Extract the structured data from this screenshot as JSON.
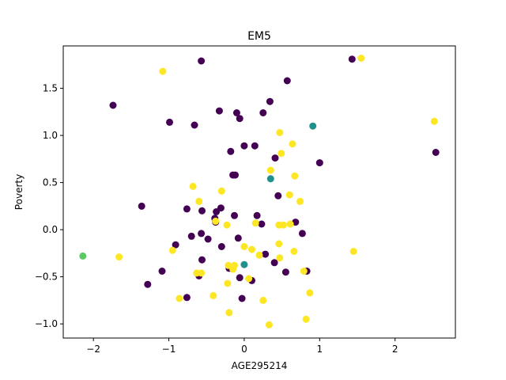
{
  "chart_data": {
    "type": "scatter",
    "title": "EM5",
    "xlabel": "AGE295214",
    "ylabel": "Poverty",
    "xlim": [
      -2.4,
      2.8
    ],
    "ylim": [
      -1.15,
      1.95
    ],
    "xticks": [
      -2,
      -1,
      0,
      1,
      2
    ],
    "xtick_labels": [
      "−2",
      "−1",
      "0",
      "1",
      "2"
    ],
    "yticks": [
      -1.0,
      -0.5,
      0.0,
      0.5,
      1.0,
      1.5
    ],
    "ytick_labels": [
      "−1.0",
      "−0.5",
      "0.0",
      "0.5",
      "1.0",
      "1.5"
    ],
    "grid": false,
    "legend": false,
    "color_map": {
      "purple": "#440154",
      "teal": "#21918c",
      "green": "#5ec962",
      "yellow": "#fde725"
    },
    "points": [
      {
        "x": -0.57,
        "y": 1.79,
        "c": "purple"
      },
      {
        "x": 1.43,
        "y": 1.81,
        "c": "purple"
      },
      {
        "x": 0.57,
        "y": 1.58,
        "c": "purple"
      },
      {
        "x": -1.74,
        "y": 1.32,
        "c": "purple"
      },
      {
        "x": 0.34,
        "y": 1.36,
        "c": "purple"
      },
      {
        "x": -0.33,
        "y": 1.26,
        "c": "purple"
      },
      {
        "x": -0.1,
        "y": 1.24,
        "c": "purple"
      },
      {
        "x": 0.25,
        "y": 1.24,
        "c": "purple"
      },
      {
        "x": -0.99,
        "y": 1.14,
        "c": "purple"
      },
      {
        "x": -0.66,
        "y": 1.11,
        "c": "purple"
      },
      {
        "x": -0.06,
        "y": 1.18,
        "c": "purple"
      },
      {
        "x": 0.0,
        "y": 0.89,
        "c": "purple"
      },
      {
        "x": 0.14,
        "y": 0.89,
        "c": "purple"
      },
      {
        "x": -0.18,
        "y": 0.83,
        "c": "purple"
      },
      {
        "x": 2.54,
        "y": 0.82,
        "c": "purple"
      },
      {
        "x": 0.41,
        "y": 0.76,
        "c": "purple"
      },
      {
        "x": 1.0,
        "y": 0.71,
        "c": "purple"
      },
      {
        "x": -0.15,
        "y": 0.58,
        "c": "purple"
      },
      {
        "x": -0.12,
        "y": 0.58,
        "c": "purple"
      },
      {
        "x": 0.45,
        "y": 0.36,
        "c": "purple"
      },
      {
        "x": -1.36,
        "y": 0.25,
        "c": "purple"
      },
      {
        "x": -0.76,
        "y": 0.22,
        "c": "purple"
      },
      {
        "x": -0.56,
        "y": 0.2,
        "c": "purple"
      },
      {
        "x": -0.37,
        "y": 0.19,
        "c": "purple"
      },
      {
        "x": -0.31,
        "y": 0.23,
        "c": "purple"
      },
      {
        "x": -0.13,
        "y": 0.15,
        "c": "purple"
      },
      {
        "x": 0.17,
        "y": 0.15,
        "c": "purple"
      },
      {
        "x": -0.39,
        "y": 0.12,
        "c": "purple"
      },
      {
        "x": -0.38,
        "y": 0.08,
        "c": "purple"
      },
      {
        "x": 0.23,
        "y": 0.06,
        "c": "purple"
      },
      {
        "x": 0.68,
        "y": 0.08,
        "c": "purple"
      },
      {
        "x": -0.57,
        "y": -0.04,
        "c": "purple"
      },
      {
        "x": -0.7,
        "y": -0.07,
        "c": "purple"
      },
      {
        "x": -0.48,
        "y": -0.1,
        "c": "purple"
      },
      {
        "x": -0.08,
        "y": -0.09,
        "c": "purple"
      },
      {
        "x": 0.77,
        "y": -0.04,
        "c": "purple"
      },
      {
        "x": -0.91,
        "y": -0.16,
        "c": "purple"
      },
      {
        "x": -0.3,
        "y": -0.18,
        "c": "purple"
      },
      {
        "x": 0.28,
        "y": -0.26,
        "c": "purple"
      },
      {
        "x": -0.56,
        "y": -0.32,
        "c": "purple"
      },
      {
        "x": 0.4,
        "y": -0.35,
        "c": "purple"
      },
      {
        "x": -0.2,
        "y": -0.41,
        "c": "purple"
      },
      {
        "x": -1.09,
        "y": -0.44,
        "c": "purple"
      },
      {
        "x": 0.55,
        "y": -0.45,
        "c": "purple"
      },
      {
        "x": 0.83,
        "y": -0.44,
        "c": "purple"
      },
      {
        "x": -0.6,
        "y": -0.49,
        "c": "purple"
      },
      {
        "x": -0.06,
        "y": -0.51,
        "c": "purple"
      },
      {
        "x": 0.1,
        "y": -0.54,
        "c": "purple"
      },
      {
        "x": -1.28,
        "y": -0.58,
        "c": "purple"
      },
      {
        "x": -0.76,
        "y": -0.72,
        "c": "purple"
      },
      {
        "x": -0.03,
        "y": -0.73,
        "c": "purple"
      },
      {
        "x": 0.91,
        "y": 1.1,
        "c": "teal"
      },
      {
        "x": 0.35,
        "y": 0.54,
        "c": "teal"
      },
      {
        "x": 0.0,
        "y": -0.37,
        "c": "teal"
      },
      {
        "x": -2.14,
        "y": -0.28,
        "c": "green"
      },
      {
        "x": -1.08,
        "y": 1.68,
        "c": "yellow"
      },
      {
        "x": 1.55,
        "y": 1.82,
        "c": "yellow"
      },
      {
        "x": 2.52,
        "y": 1.15,
        "c": "yellow"
      },
      {
        "x": 0.47,
        "y": 1.03,
        "c": "yellow"
      },
      {
        "x": 0.64,
        "y": 0.91,
        "c": "yellow"
      },
      {
        "x": 0.49,
        "y": 0.81,
        "c": "yellow"
      },
      {
        "x": 0.35,
        "y": 0.63,
        "c": "yellow"
      },
      {
        "x": 0.67,
        "y": 0.57,
        "c": "yellow"
      },
      {
        "x": -0.68,
        "y": 0.46,
        "c": "yellow"
      },
      {
        "x": -0.3,
        "y": 0.41,
        "c": "yellow"
      },
      {
        "x": 0.6,
        "y": 0.37,
        "c": "yellow"
      },
      {
        "x": 0.74,
        "y": 0.3,
        "c": "yellow"
      },
      {
        "x": -0.6,
        "y": 0.3,
        "c": "yellow"
      },
      {
        "x": -0.38,
        "y": 0.09,
        "c": "yellow"
      },
      {
        "x": -0.23,
        "y": 0.05,
        "c": "yellow"
      },
      {
        "x": 0.15,
        "y": 0.07,
        "c": "yellow"
      },
      {
        "x": 0.46,
        "y": 0.05,
        "c": "yellow"
      },
      {
        "x": 0.52,
        "y": 0.05,
        "c": "yellow"
      },
      {
        "x": 0.61,
        "y": 0.06,
        "c": "yellow"
      },
      {
        "x": -0.95,
        "y": -0.22,
        "c": "yellow"
      },
      {
        "x": 0.0,
        "y": -0.18,
        "c": "yellow"
      },
      {
        "x": 0.1,
        "y": -0.21,
        "c": "yellow"
      },
      {
        "x": 0.66,
        "y": -0.23,
        "c": "yellow"
      },
      {
        "x": 1.45,
        "y": -0.23,
        "c": "yellow"
      },
      {
        "x": -1.66,
        "y": -0.29,
        "c": "yellow"
      },
      {
        "x": 0.2,
        "y": -0.27,
        "c": "yellow"
      },
      {
        "x": 0.47,
        "y": -0.3,
        "c": "yellow"
      },
      {
        "x": 0.46,
        "y": -0.15,
        "c": "yellow"
      },
      {
        "x": -0.13,
        "y": -0.38,
        "c": "yellow"
      },
      {
        "x": -0.21,
        "y": -0.38,
        "c": "yellow"
      },
      {
        "x": -0.15,
        "y": -0.42,
        "c": "yellow"
      },
      {
        "x": -0.63,
        "y": -0.46,
        "c": "yellow"
      },
      {
        "x": -0.57,
        "y": -0.46,
        "c": "yellow"
      },
      {
        "x": 0.79,
        "y": -0.44,
        "c": "yellow"
      },
      {
        "x": 0.06,
        "y": -0.52,
        "c": "yellow"
      },
      {
        "x": -0.22,
        "y": -0.57,
        "c": "yellow"
      },
      {
        "x": 0.87,
        "y": -0.67,
        "c": "yellow"
      },
      {
        "x": -0.41,
        "y": -0.7,
        "c": "yellow"
      },
      {
        "x": -0.86,
        "y": -0.73,
        "c": "yellow"
      },
      {
        "x": 0.25,
        "y": -0.75,
        "c": "yellow"
      },
      {
        "x": -0.2,
        "y": -0.88,
        "c": "yellow"
      },
      {
        "x": 0.82,
        "y": -0.95,
        "c": "yellow"
      },
      {
        "x": 0.33,
        "y": -1.01,
        "c": "yellow"
      }
    ]
  }
}
